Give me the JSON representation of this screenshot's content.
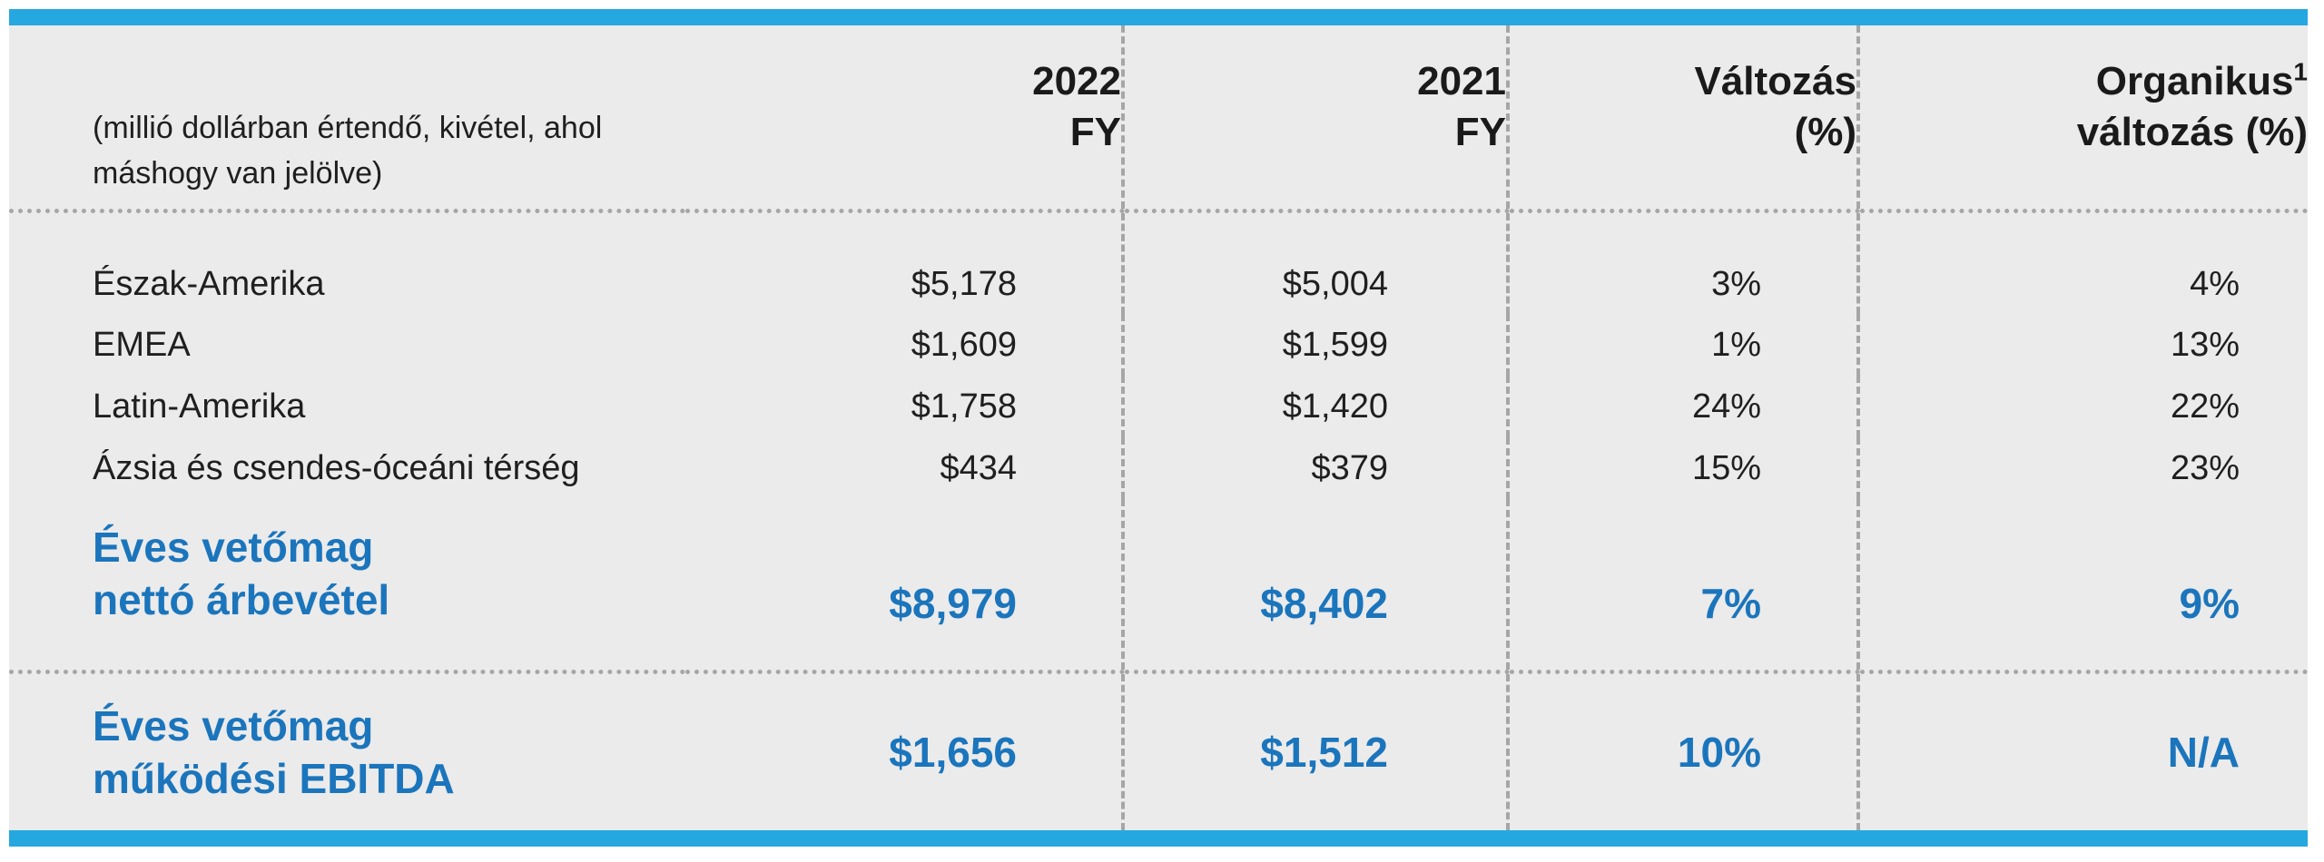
{
  "colors": {
    "bar_blue": "#25A8E0",
    "accent_text_blue": "#1B75BC",
    "panel_gray": "#EBEBEB",
    "text_dark": "#1F1F1F",
    "divider_gray": "#A6A6A6"
  },
  "table": {
    "note": {
      "line1": "(millió dollárban értendő, kivétel, ahol",
      "line2": "máshogy van jelölve)"
    },
    "headers": {
      "fy2022": {
        "line1": "2022",
        "line2": "FY"
      },
      "fy2021": {
        "line1": "2021",
        "line2": "FY"
      },
      "change": {
        "line1": "Változás",
        "line2": "(%)"
      },
      "organic": {
        "line1": "Organikus",
        "sup": "1",
        "line2": "változás (%)"
      }
    },
    "rows": [
      {
        "label": "Észak-Amerika",
        "fy2022": "$5,178",
        "fy2021": "$5,004",
        "change": "3%",
        "organic": "4%"
      },
      {
        "label": "EMEA",
        "fy2022": "$1,609",
        "fy2021": "$1,599",
        "change": "1%",
        "organic": "13%"
      },
      {
        "label": "Latin-Amerika",
        "fy2022": "$1,758",
        "fy2021": "$1,420",
        "change": "24%",
        "organic": "22%"
      },
      {
        "label": "Ázsia és csendes-óceáni térség",
        "fy2022": "$434",
        "fy2021": "$379",
        "change": "15%",
        "organic": "23%"
      }
    ],
    "totals": [
      {
        "label_line1": "Éves vetőmag",
        "label_line2": "nettó árbevétel",
        "fy2022": "$8,979",
        "fy2021": "$8,402",
        "change": "7%",
        "organic": "9%"
      },
      {
        "label_line1": "Éves vetőmag",
        "label_line2": "működési EBITDA",
        "fy2022": "$1,656",
        "fy2021": "$1,512",
        "change": "10%",
        "organic": "N/A"
      }
    ]
  }
}
